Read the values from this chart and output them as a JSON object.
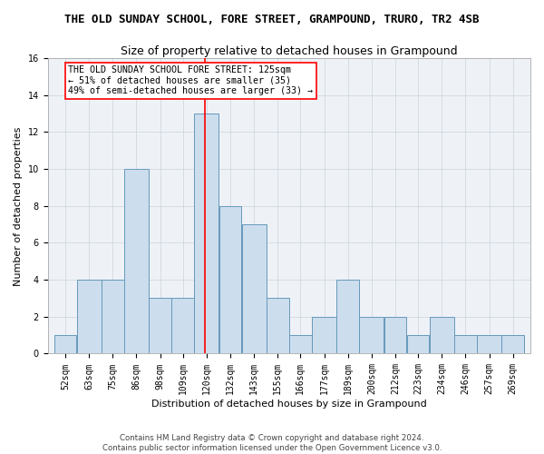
{
  "title": "THE OLD SUNDAY SCHOOL, FORE STREET, GRAMPOUND, TRURO, TR2 4SB",
  "subtitle": "Size of property relative to detached houses in Grampound",
  "xlabel": "Distribution of detached houses by size in Grampound",
  "ylabel": "Number of detached properties",
  "bar_color": "#ccdded",
  "bar_edge_color": "#6699bb",
  "grid_color": "#d0d8e0",
  "vline_x": 125,
  "vline_color": "red",
  "annotation_text": "THE OLD SUNDAY SCHOOL FORE STREET: 125sqm\n← 51% of detached houses are smaller (35)\n49% of semi-detached houses are larger (33) →",
  "annotation_box_color": "white",
  "annotation_box_edgecolor": "red",
  "footer_line1": "Contains HM Land Registry data © Crown copyright and database right 2024.",
  "footer_line2": "Contains public sector information licensed under the Open Government Licence v3.0.",
  "bins": [
    52,
    63,
    75,
    86,
    98,
    109,
    120,
    132,
    143,
    155,
    166,
    177,
    189,
    200,
    212,
    223,
    234,
    246,
    257,
    269,
    280
  ],
  "counts": [
    1,
    4,
    4,
    10,
    3,
    3,
    13,
    8,
    7,
    3,
    1,
    2,
    4,
    2,
    2,
    1,
    2,
    1,
    1,
    1
  ],
  "ylim": [
    0,
    16
  ],
  "yticks": [
    0,
    2,
    4,
    6,
    8,
    10,
    12,
    14,
    16
  ],
  "background_color": "#eef2f7",
  "title_fontsize": 9,
  "subtitle_fontsize": 9,
  "ylabel_fontsize": 8,
  "xlabel_fontsize": 8,
  "tick_fontsize": 7
}
